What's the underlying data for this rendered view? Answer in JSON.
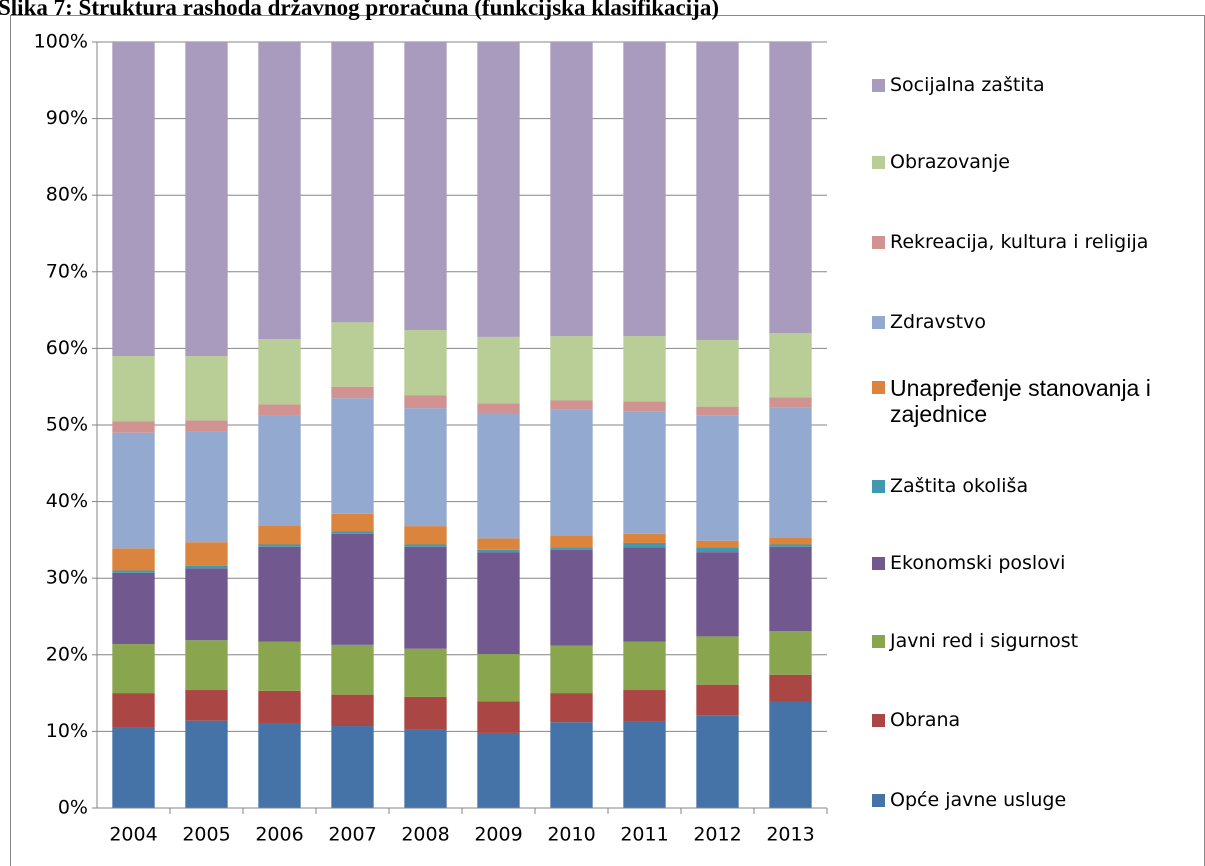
{
  "chart_data": {
    "type": "stacked_bar",
    "title": "Slika 7: Struktura rashoda državnog proračuna (funkcijska klasifikacija)",
    "categories": [
      "2004",
      "2005",
      "2006",
      "2007",
      "2008",
      "2009",
      "2010",
      "2011",
      "2012",
      "2013"
    ],
    "series": [
      {
        "name": "Opće javne usluge",
        "color": "#4572a7",
        "values": [
          10.5,
          11.4,
          11.1,
          10.7,
          10.2,
          9.8,
          11.2,
          11.3,
          12.1,
          13.9
        ]
      },
      {
        "name": "Obrana",
        "color": "#aa4643",
        "values": [
          4.5,
          4.0,
          4.2,
          4.1,
          4.3,
          4.1,
          3.8,
          4.1,
          4.0,
          3.5
        ]
      },
      {
        "name": "Javni red i sigurnost",
        "color": "#89a54e",
        "values": [
          6.4,
          6.5,
          6.4,
          6.5,
          6.3,
          6.2,
          6.2,
          6.3,
          6.3,
          5.7
        ]
      },
      {
        "name": "Ekonomski poslovi",
        "color": "#71588f",
        "values": [
          9.3,
          9.4,
          12.4,
          14.5,
          13.3,
          13.3,
          12.5,
          12.3,
          11.0,
          11.0
        ]
      },
      {
        "name": "Zaštita okoliša",
        "color": "#4198af",
        "values": [
          0.3,
          0.3,
          0.3,
          0.3,
          0.3,
          0.3,
          0.3,
          0.6,
          0.6,
          0.3
        ]
      },
      {
        "name": "Unapređenje stanovanja i zajednice",
        "color": "#db843d",
        "values": [
          2.9,
          3.1,
          2.5,
          2.3,
          2.4,
          1.5,
          1.6,
          1.2,
          0.9,
          0.9
        ]
      },
      {
        "name": "Zdravstvo",
        "color": "#93a9cf",
        "values": [
          15.1,
          14.4,
          14.4,
          15.1,
          15.4,
          16.3,
          16.4,
          16.0,
          16.3,
          17.0
        ]
      },
      {
        "name": "Rekreacija, kultura i religija",
        "color": "#d19392",
        "values": [
          1.5,
          1.5,
          1.4,
          1.5,
          1.7,
          1.3,
          1.2,
          1.3,
          1.2,
          1.3
        ]
      },
      {
        "name": "Obrazovanje",
        "color": "#b9cd96",
        "values": [
          8.5,
          8.4,
          8.5,
          8.4,
          8.5,
          8.7,
          8.4,
          8.5,
          8.7,
          8.4
        ]
      },
      {
        "name": "Socijalna zaštita",
        "color": "#a99bbd",
        "values": [
          41.0,
          41.0,
          38.8,
          36.6,
          37.6,
          38.5,
          38.4,
          38.4,
          38.9,
          38.0
        ]
      }
    ],
    "ylim": [
      0,
      100
    ],
    "yticks": [
      {
        "value": 0,
        "label": "0%"
      },
      {
        "value": 10,
        "label": "10%"
      },
      {
        "value": 20,
        "label": "20%"
      },
      {
        "value": 30,
        "label": "30%"
      },
      {
        "value": 40,
        "label": "40%"
      },
      {
        "value": 50,
        "label": "50%"
      },
      {
        "value": 60,
        "label": "60%"
      },
      {
        "value": 70,
        "label": "70%"
      },
      {
        "value": 80,
        "label": "80%"
      },
      {
        "value": 90,
        "label": "90%"
      },
      {
        "value": 100,
        "label": "100%"
      }
    ],
    "grid": true,
    "legend": "right"
  }
}
